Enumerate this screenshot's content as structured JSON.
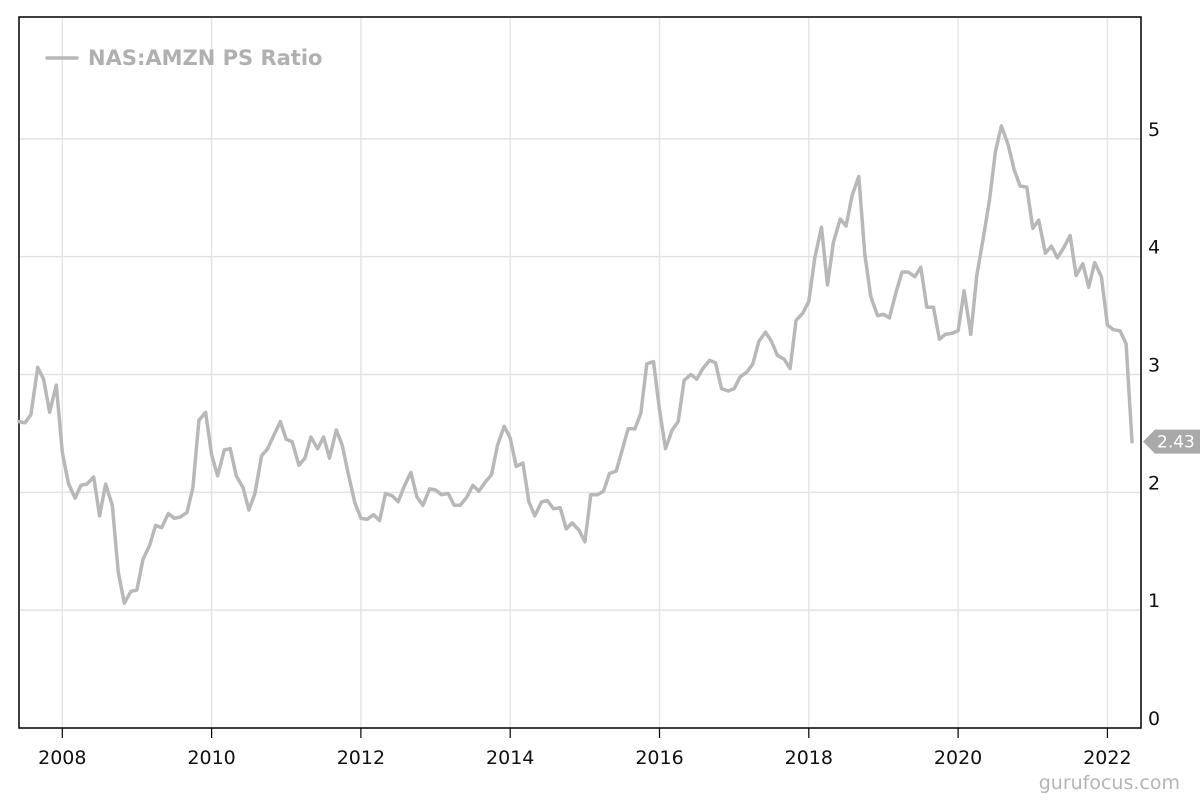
{
  "watermark": "gurufocus.com",
  "chart_data": {
    "type": "line",
    "title": "",
    "xlabel": "",
    "ylabel": "",
    "legend": {
      "label": "NAS:AMZN PS Ratio",
      "placement": "top-left"
    },
    "xlim": [
      2007.42,
      2022.45
    ],
    "ylim": [
      0,
      6
    ],
    "x_ticks": [
      2008,
      2010,
      2012,
      2014,
      2016,
      2018,
      2020,
      2022
    ],
    "x_tick_labels": [
      "2008",
      "2010",
      "2012",
      "2014",
      "2016",
      "2018",
      "2020",
      "2022"
    ],
    "y_ticks": [
      0,
      1,
      2,
      3,
      4,
      5
    ],
    "y_tick_labels": [
      "0",
      "1",
      "2",
      "3",
      "4",
      "5"
    ],
    "grid": true,
    "line_color": "#b8b8b8",
    "last_value_label": "2.43",
    "series": [
      {
        "name": "NAS:AMZN PS Ratio",
        "x": [
          2007.42,
          2007.5,
          2007.58,
          2007.67,
          2007.75,
          2007.83,
          2007.92,
          2008.0,
          2008.08,
          2008.17,
          2008.25,
          2008.33,
          2008.42,
          2008.5,
          2008.58,
          2008.67,
          2008.75,
          2008.83,
          2008.92,
          2009.0,
          2009.08,
          2009.17,
          2009.25,
          2009.33,
          2009.42,
          2009.5,
          2009.58,
          2009.67,
          2009.75,
          2009.83,
          2009.92,
          2010.0,
          2010.08,
          2010.17,
          2010.25,
          2010.33,
          2010.42,
          2010.5,
          2010.58,
          2010.67,
          2010.75,
          2010.83,
          2010.92,
          2011.0,
          2011.08,
          2011.17,
          2011.25,
          2011.33,
          2011.42,
          2011.5,
          2011.58,
          2011.67,
          2011.75,
          2011.83,
          2011.92,
          2012.0,
          2012.08,
          2012.17,
          2012.25,
          2012.33,
          2012.42,
          2012.5,
          2012.58,
          2012.67,
          2012.75,
          2012.83,
          2012.92,
          2013.0,
          2013.08,
          2013.17,
          2013.25,
          2013.33,
          2013.42,
          2013.5,
          2013.58,
          2013.67,
          2013.75,
          2013.83,
          2013.92,
          2014.0,
          2014.08,
          2014.17,
          2014.25,
          2014.33,
          2014.42,
          2014.5,
          2014.58,
          2014.67,
          2014.75,
          2014.83,
          2014.92,
          2015.0,
          2015.08,
          2015.17,
          2015.25,
          2015.33,
          2015.42,
          2015.5,
          2015.58,
          2015.67,
          2015.75,
          2015.83,
          2015.92,
          2016.0,
          2016.08,
          2016.17,
          2016.25,
          2016.33,
          2016.42,
          2016.5,
          2016.58,
          2016.67,
          2016.75,
          2016.83,
          2016.92,
          2017.0,
          2017.08,
          2017.17,
          2017.25,
          2017.33,
          2017.42,
          2017.5,
          2017.58,
          2017.67,
          2017.75,
          2017.83,
          2017.92,
          2018.0,
          2018.08,
          2018.17,
          2018.25,
          2018.33,
          2018.42,
          2018.5,
          2018.58,
          2018.67,
          2018.75,
          2018.83,
          2018.92,
          2019.0,
          2019.08,
          2019.17,
          2019.25,
          2019.33,
          2019.42,
          2019.5,
          2019.58,
          2019.67,
          2019.75,
          2019.83,
          2019.92,
          2020.0,
          2020.08,
          2020.17,
          2020.25,
          2020.33,
          2020.42,
          2020.5,
          2020.58,
          2020.67,
          2020.75,
          2020.83,
          2020.92,
          2021.0,
          2021.08,
          2021.17,
          2021.25,
          2021.33,
          2021.42,
          2021.5,
          2021.58,
          2021.67,
          2021.75,
          2021.83,
          2021.92,
          2022.0,
          2022.08,
          2022.17,
          2022.25,
          2022.33
        ],
        "values": [
          2.6,
          2.59,
          2.66,
          3.06,
          2.96,
          2.68,
          2.91,
          2.34,
          2.08,
          1.95,
          2.06,
          2.07,
          2.13,
          1.8,
          2.07,
          1.89,
          1.32,
          1.06,
          1.16,
          1.17,
          1.43,
          1.55,
          1.72,
          1.7,
          1.82,
          1.78,
          1.79,
          1.83,
          2.04,
          2.61,
          2.68,
          2.32,
          2.14,
          2.36,
          2.37,
          2.14,
          2.04,
          1.85,
          1.99,
          2.31,
          2.37,
          2.48,
          2.6,
          2.45,
          2.43,
          2.23,
          2.29,
          2.47,
          2.37,
          2.47,
          2.29,
          2.53,
          2.4,
          2.16,
          1.91,
          1.78,
          1.77,
          1.81,
          1.76,
          1.99,
          1.97,
          1.92,
          2.05,
          2.17,
          1.96,
          1.89,
          2.03,
          2.02,
          1.98,
          1.99,
          1.89,
          1.89,
          1.96,
          2.06,
          2.01,
          2.09,
          2.15,
          2.4,
          2.56,
          2.46,
          2.22,
          2.25,
          1.92,
          1.8,
          1.92,
          1.93,
          1.86,
          1.87,
          1.69,
          1.74,
          1.68,
          1.58,
          1.98,
          1.98,
          2.01,
          2.16,
          2.18,
          2.36,
          2.54,
          2.54,
          2.67,
          3.09,
          3.11,
          2.7,
          2.37,
          2.53,
          2.6,
          2.95,
          3.0,
          2.96,
          3.05,
          3.12,
          3.1,
          2.88,
          2.86,
          2.88,
          2.98,
          3.02,
          3.09,
          3.28,
          3.36,
          3.28,
          3.16,
          3.13,
          3.05,
          3.46,
          3.52,
          3.62,
          3.99,
          4.25,
          3.76,
          4.12,
          4.32,
          4.26,
          4.52,
          4.68,
          4.02,
          3.66,
          3.5,
          3.51,
          3.48,
          3.7,
          3.87,
          3.87,
          3.83,
          3.91,
          3.57,
          3.57,
          3.3,
          3.34,
          3.35,
          3.37,
          3.71,
          3.34,
          3.84,
          4.13,
          4.48,
          4.89,
          5.11,
          4.95,
          4.74,
          4.6,
          4.59,
          4.24,
          4.31,
          4.03,
          4.09,
          3.99,
          4.08,
          4.18,
          3.84,
          3.94,
          3.74,
          3.95,
          3.83,
          3.42,
          3.38,
          3.37,
          3.26,
          2.43
        ]
      }
    ]
  }
}
